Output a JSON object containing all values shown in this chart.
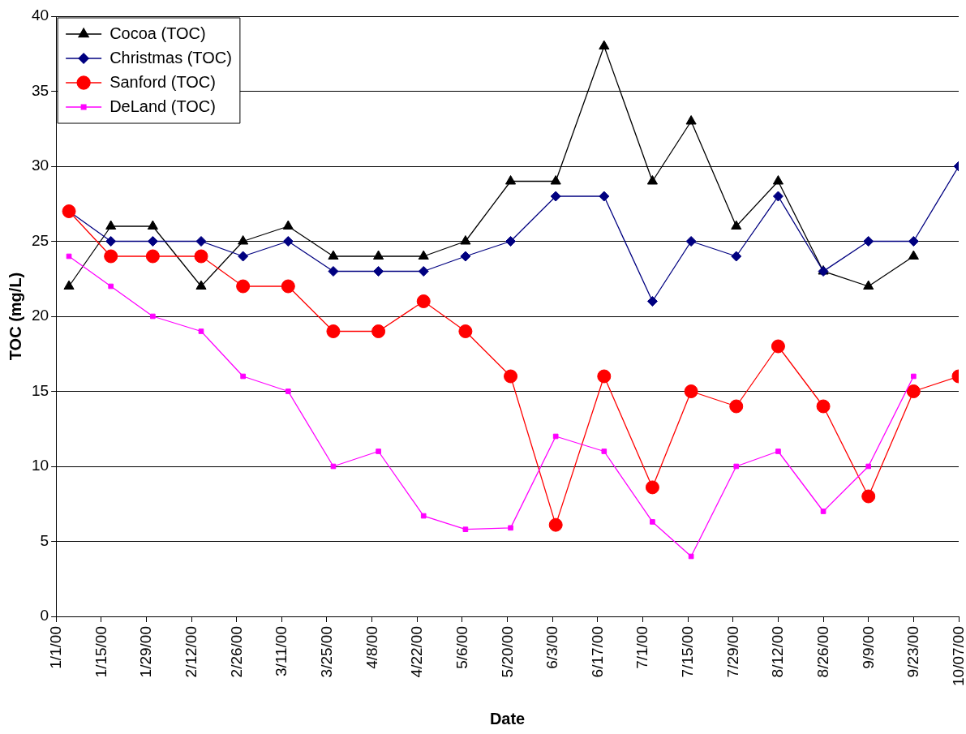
{
  "chart_data": {
    "type": "line",
    "xlabel": "Date",
    "ylabel": "TOC (mg/L)",
    "x": [
      "2000-01-05",
      "2000-01-18",
      "2000-01-31",
      "2000-02-15",
      "2000-02-28",
      "2000-03-13",
      "2000-03-27",
      "2000-04-10",
      "2000-04-24",
      "2000-05-07",
      "2000-05-21",
      "2000-06-04",
      "2000-06-19",
      "2000-07-04",
      "2000-07-16",
      "2000-07-30",
      "2000-08-12",
      "2000-08-26",
      "2000-09-09",
      "2000-09-23",
      "2000-10-07"
    ],
    "series": [
      {
        "name": "Cocoa (TOC)",
        "color": "#000000",
        "marker": "triangle",
        "values": [
          22,
          26,
          26,
          22,
          25,
          26,
          24,
          24,
          24,
          25,
          29,
          29,
          38,
          29,
          33,
          26,
          29,
          23,
          22,
          24,
          null
        ]
      },
      {
        "name": "Christmas (TOC)",
        "color": "#000080",
        "marker": "diamond",
        "values": [
          27,
          25,
          25,
          25,
          24,
          25,
          23,
          23,
          23,
          24,
          25,
          28,
          28,
          21,
          25,
          24,
          28,
          23,
          25,
          25,
          30
        ]
      },
      {
        "name": "Sanford (TOC)",
        "color": "#ff0000",
        "marker": "circle",
        "values": [
          27,
          24,
          24,
          24,
          22,
          22,
          19,
          19,
          21,
          19,
          16,
          6.1,
          16,
          8.6,
          15,
          14,
          18,
          14,
          8,
          15,
          16
        ]
      },
      {
        "name": "DeLand (TOC)",
        "color": "#ff00ff",
        "marker": "square",
        "values": [
          24,
          22,
          20,
          19,
          16,
          15,
          10,
          11,
          6.7,
          5.8,
          5.9,
          12,
          11,
          6.3,
          4,
          10,
          11,
          7,
          10,
          16,
          null
        ]
      }
    ],
    "xlim": [
      "2000-01-01",
      "2000-10-07"
    ],
    "xticks": [
      {
        "value": "2000-01-01",
        "label": "1/1/00"
      },
      {
        "value": "2000-01-15",
        "label": "1/15/00"
      },
      {
        "value": "2000-01-29",
        "label": "1/29/00"
      },
      {
        "value": "2000-02-12",
        "label": "2/12/00"
      },
      {
        "value": "2000-02-26",
        "label": "2/26/00"
      },
      {
        "value": "2000-03-11",
        "label": "3/11/00"
      },
      {
        "value": "2000-03-25",
        "label": "3/25/00"
      },
      {
        "value": "2000-04-08",
        "label": "4/8/00"
      },
      {
        "value": "2000-04-22",
        "label": "4/22/00"
      },
      {
        "value": "2000-05-06",
        "label": "5/6/00"
      },
      {
        "value": "2000-05-20",
        "label": "5/20/00"
      },
      {
        "value": "2000-06-03",
        "label": "6/3/00"
      },
      {
        "value": "2000-06-17",
        "label": "6/17/00"
      },
      {
        "value": "2000-07-01",
        "label": "7/1/00"
      },
      {
        "value": "2000-07-15",
        "label": "7/15/00"
      },
      {
        "value": "2000-07-29",
        "label": "7/29/00"
      },
      {
        "value": "2000-08-12",
        "label": "8/12/00"
      },
      {
        "value": "2000-08-26",
        "label": "8/26/00"
      },
      {
        "value": "2000-09-09",
        "label": "9/9/00"
      },
      {
        "value": "2000-09-23",
        "label": "9/23/00"
      },
      {
        "value": "2000-10-07",
        "label": "10/07/00"
      }
    ],
    "ylim": [
      0,
      40
    ],
    "yticks": [
      0,
      5,
      10,
      15,
      20,
      25,
      30,
      35,
      40
    ],
    "grid": "y",
    "legend": "top left"
  }
}
